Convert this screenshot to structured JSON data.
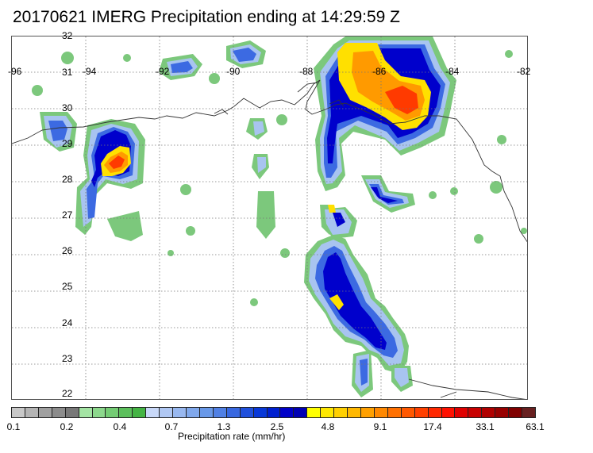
{
  "title": "20170621 IMERG Precipitation ending at 14:29:59 Z",
  "map": {
    "lon_range": [
      -96,
      -82
    ],
    "lat_range": [
      22,
      32
    ],
    "lon_labels": [
      "-96",
      "-94",
      "-92",
      "-90",
      "-88",
      "-86",
      "-84",
      "-82"
    ],
    "lat_labels": [
      "32",
      "31",
      "30",
      "29",
      "28",
      "27",
      "26",
      "25",
      "24",
      "23",
      "22"
    ],
    "gridlines": true
  },
  "colorbar": {
    "title": "Precipitation rate (mm/hr)",
    "tick_labels": [
      "0.1",
      "0.2",
      "0.4",
      "0.7",
      "1.3",
      "2.5",
      "4.8",
      "9.1",
      "17.4",
      "33.1",
      "63.1"
    ],
    "colors": [
      "#c8c8c8",
      "#b4b4b4",
      "#a0a0a0",
      "#8c8c8c",
      "#787878",
      "#a4e4a4",
      "#8cd88c",
      "#74cc74",
      "#5cc05c",
      "#44b444",
      "#c8d8f8",
      "#b0c8f4",
      "#98b8f0",
      "#80a8ec",
      "#6898e8",
      "#5080e4",
      "#3868e0",
      "#2050dc",
      "#0838d8",
      "#0020d0",
      "#0000c8",
      "#0000b4",
      "#ffff00",
      "#ffe800",
      "#ffd000",
      "#ffb800",
      "#ffa000",
      "#ff8800",
      "#ff7000",
      "#ff5800",
      "#ff4000",
      "#ff2800",
      "#ff1000",
      "#e00000",
      "#c80000",
      "#b00000",
      "#980000",
      "#800000",
      "#682020"
    ]
  }
}
